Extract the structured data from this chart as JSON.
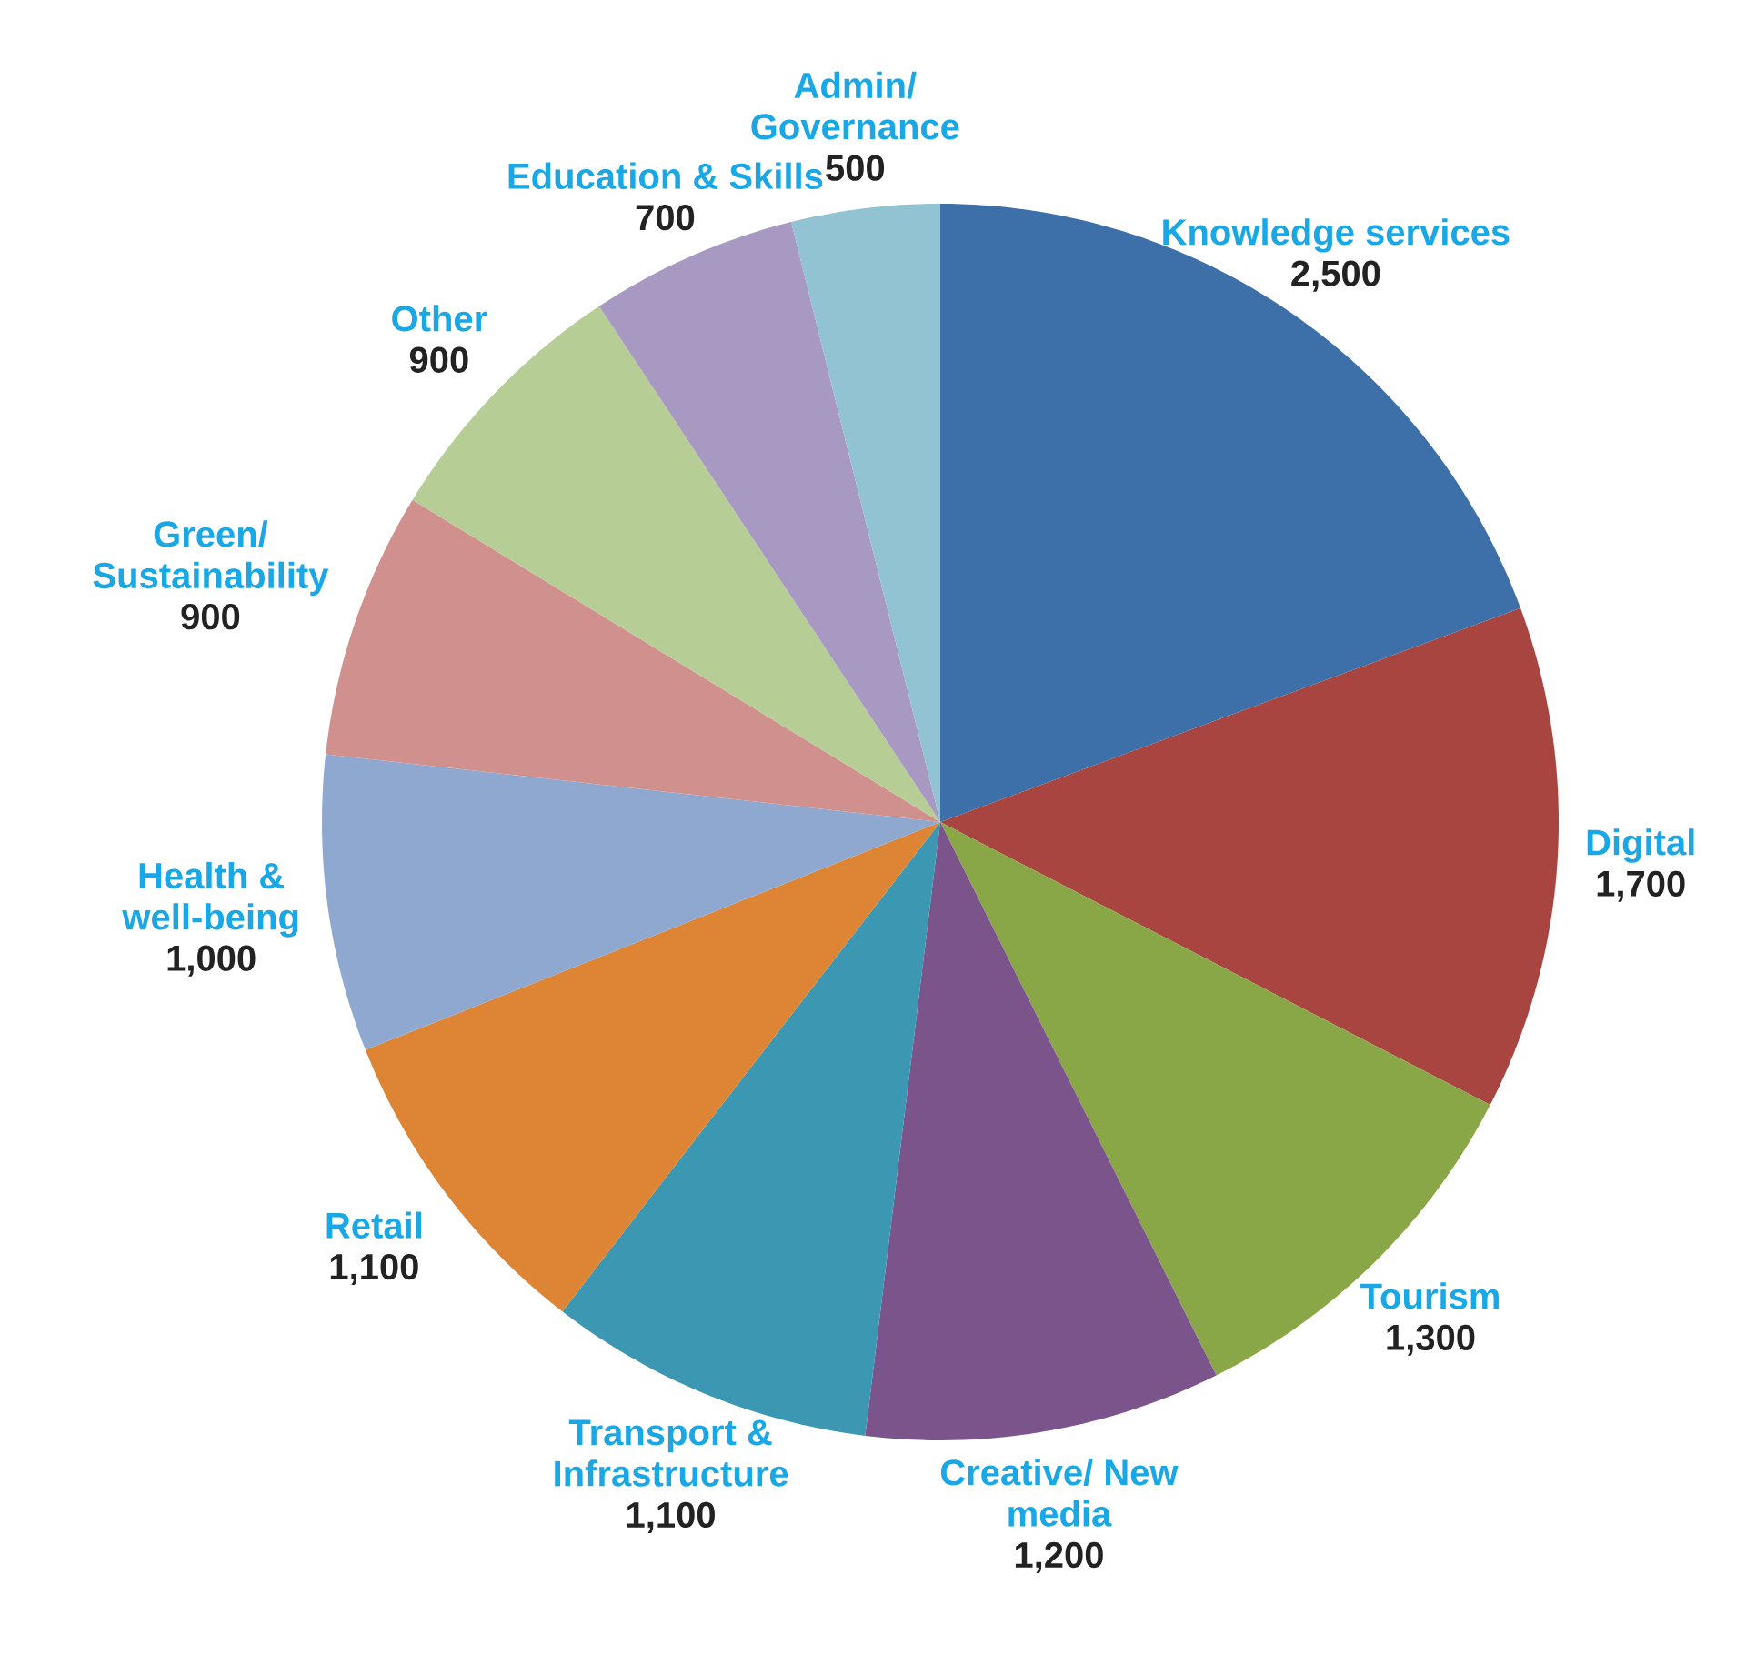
{
  "chart_data": {
    "type": "pie",
    "categories": [
      "Knowledge services",
      "Digital",
      "Tourism",
      "Creative/ New media",
      "Transport & Infrastructure",
      "Retail",
      "Health & well-being",
      "Green/ Sustainability",
      "Other",
      "Education & Skills",
      "Admin/ Governance"
    ],
    "values": [
      2500,
      1700,
      1300,
      1200,
      1100,
      1100,
      1000,
      900,
      900,
      700,
      500
    ],
    "value_labels": [
      "2,500",
      "1,700",
      "1,300",
      "1,200",
      "1,100",
      "1,100",
      "1,000",
      "900",
      "900",
      "700",
      "500"
    ],
    "colors": [
      "#3d6fa8",
      "#a84540",
      "#8aa747",
      "#7a548b",
      "#3c98b2",
      "#dd8534",
      "#8fa8cf",
      "#d0918e",
      "#b6ce95",
      "#a899c2",
      "#92c3d3"
    ]
  }
}
